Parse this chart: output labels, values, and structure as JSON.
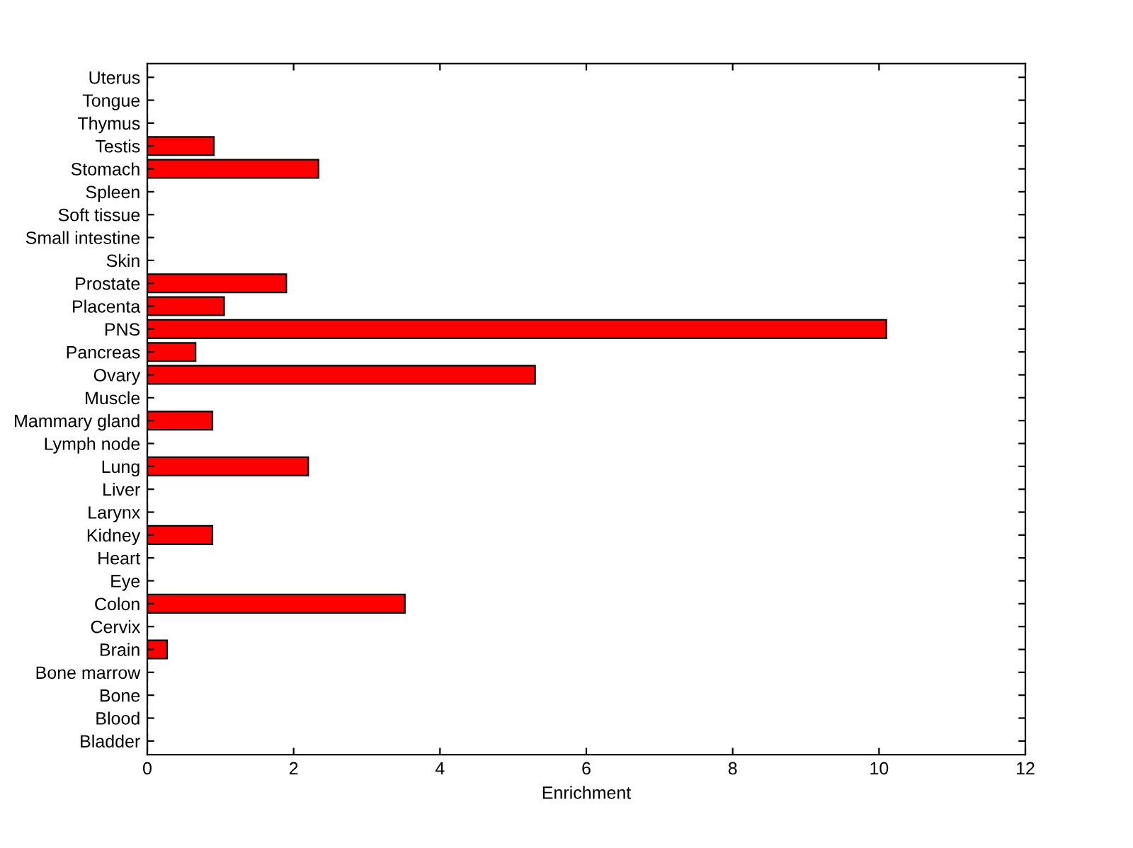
{
  "chart_data": {
    "type": "bar",
    "orientation": "horizontal",
    "xlabel": "Enrichment",
    "categories": [
      "Uterus",
      "Tongue",
      "Thymus",
      "Testis",
      "Stomach",
      "Spleen",
      "Soft tissue",
      "Small intestine",
      "Skin",
      "Prostate",
      "Placenta",
      "PNS",
      "Pancreas",
      "Ovary",
      "Muscle",
      "Mammary gland",
      "Lymph node",
      "Lung",
      "Liver",
      "Larynx",
      "Kidney",
      "Heart",
      "Eye",
      "Colon",
      "Cervix",
      "Brain",
      "Bone marrow",
      "Bone",
      "Blood",
      "Bladder"
    ],
    "values": [
      0,
      0,
      0,
      0.91,
      2.34,
      0,
      0,
      0,
      0,
      1.9,
      1.05,
      10.1,
      0.66,
      5.3,
      0,
      0.89,
      0,
      2.2,
      0,
      0,
      0.89,
      0,
      0,
      3.52,
      0,
      0.27,
      0,
      0,
      0,
      0
    ],
    "color": "#ff0000",
    "xlim": [
      0,
      12
    ],
    "xticks": [
      0,
      2,
      4,
      6,
      8,
      10,
      12
    ],
    "grid": false,
    "legend": false
  }
}
